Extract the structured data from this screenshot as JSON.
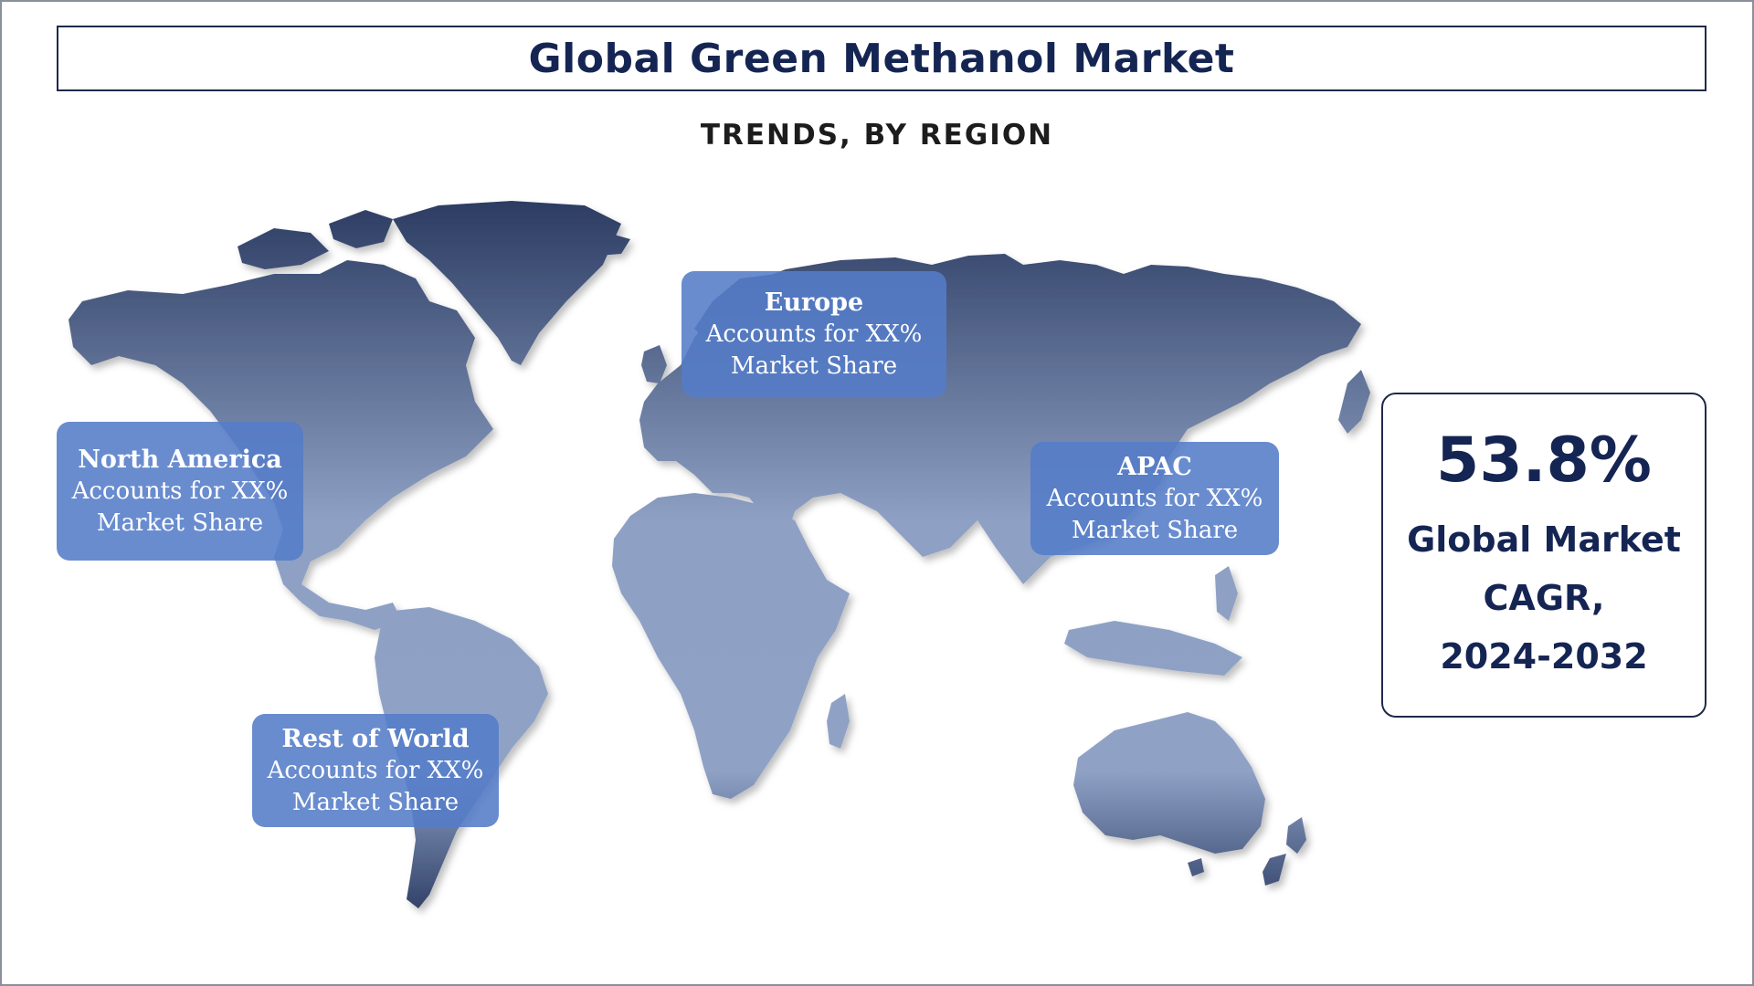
{
  "header": {
    "title": "Global Green Methanol Market",
    "subtitle": "TRENDS, BY REGION"
  },
  "regions": [
    {
      "name": "North America",
      "line1": "Accounts for XX%",
      "line2": "Market Share"
    },
    {
      "name": "Europe",
      "line1": "Accounts for XX%",
      "line2": "Market Share"
    },
    {
      "name": "APAC",
      "line1": "Accounts for XX%",
      "line2": "Market Share"
    },
    {
      "name": "Rest of World",
      "line1": "Accounts for XX%",
      "line2": "Market Share"
    }
  ],
  "stat": {
    "value": "53.8%",
    "label_line1": "Global Market",
    "label_line2": "CAGR,",
    "label_line3": "2024-2032"
  },
  "colors": {
    "title": "#152553",
    "card": "#547cc8",
    "land_top": "#2c3c62",
    "land_bottom": "#93a5c8"
  }
}
